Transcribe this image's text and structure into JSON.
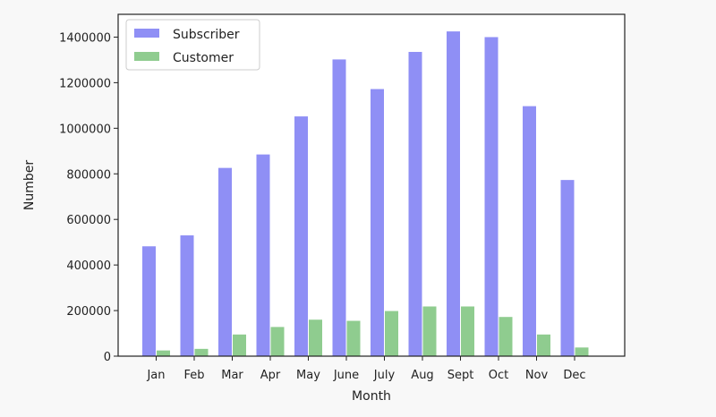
{
  "chart_data": {
    "type": "bar",
    "title": "",
    "xlabel": "Month",
    "ylabel": "Number",
    "categories": [
      "Jan",
      "Feb",
      "Mar",
      "Apr",
      "May",
      "June",
      "July",
      "Aug",
      "Sept",
      "Oct",
      "Nov",
      "Dec"
    ],
    "series": [
      {
        "name": "Subscriber",
        "color": "#8f8ff5",
        "values": [
          482000,
          530000,
          826000,
          885000,
          1052000,
          1302000,
          1172000,
          1335000,
          1425000,
          1400000,
          1097000,
          773000
        ]
      },
      {
        "name": "Customer",
        "color": "#8fcc8f",
        "values": [
          25000,
          32000,
          95000,
          128000,
          160000,
          155000,
          198000,
          218000,
          218000,
          172000,
          95000,
          38000
        ]
      }
    ],
    "yticks": [
      0,
      200000,
      400000,
      600000,
      800000,
      1000000,
      1200000,
      1400000
    ],
    "ylim": [
      0,
      1500000
    ],
    "grid": false,
    "legend_position": "top-left"
  }
}
